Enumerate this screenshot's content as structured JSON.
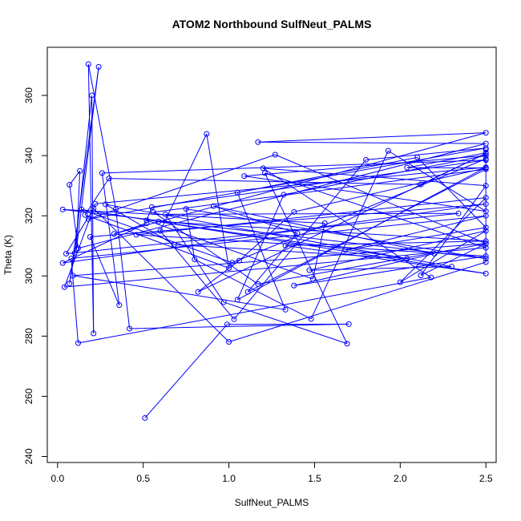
{
  "chart_data": {
    "type": "line",
    "title": "ATOM2 Northbound SulfNeut_PALMS",
    "xlabel": "SulfNeut_PALMS",
    "ylabel": "Theta (K)",
    "xlim": [
      -0.06,
      2.56
    ],
    "ylim": [
      238,
      376
    ],
    "xticks": [
      0.0,
      0.5,
      1.0,
      1.5,
      2.0,
      2.5
    ],
    "xtick_labels": [
      "0.0",
      "0.5",
      "1.0",
      "1.5",
      "2.0",
      "2.5"
    ],
    "yticks": [
      240,
      260,
      280,
      300,
      320,
      340,
      360
    ],
    "ytick_labels": [
      "240",
      "260",
      "280",
      "300",
      "320",
      "340",
      "360"
    ],
    "grid": false,
    "legend": "none",
    "series": [
      {
        "color": "#0000ff",
        "marker": "open-circle",
        "points": [
          [
            0.51,
            252.8
          ],
          [
            0.99,
            283.9
          ],
          [
            1.7,
            284.0
          ],
          [
            0.42,
            282.5
          ],
          [
            0.34,
            322.2
          ],
          [
            0.18,
            370.4
          ],
          [
            0.21,
            280.9
          ],
          [
            0.2,
            360.0
          ],
          [
            0.1,
            307.6
          ],
          [
            0.07,
            297.5
          ],
          [
            0.24,
            369.5
          ],
          [
            0.11,
            308.9
          ],
          [
            0.13,
            334.9
          ],
          [
            0.07,
            330.3
          ],
          [
            0.12,
            309.2
          ],
          [
            2.5,
            344.0
          ],
          [
            1.17,
            344.5
          ],
          [
            2.5,
            347.6
          ],
          [
            0.33,
            314.0
          ],
          [
            0.52,
            317.5
          ],
          [
            0.03,
            304.3
          ],
          [
            2.5,
            323.9
          ],
          [
            0.19,
            313.0
          ],
          [
            0.36,
            290.3
          ],
          [
            0.26,
            334.2
          ],
          [
            2.5,
            338.5
          ],
          [
            0.55,
            322.9
          ],
          [
            0.52,
            318.5
          ],
          [
            1.49,
            299.0
          ],
          [
            1.56,
            317.5
          ],
          [
            0.03,
            322.1
          ],
          [
            2.5,
            305.8
          ],
          [
            0.75,
            322.3
          ],
          [
            0.8,
            305.5
          ],
          [
            1.48,
            285.7
          ],
          [
            1.93,
            341.6
          ],
          [
            2.5,
            321.5
          ],
          [
            1.09,
            333.2
          ],
          [
            2.5,
            340.0
          ],
          [
            1.32,
            327.0
          ],
          [
            1.05,
            292.1
          ],
          [
            2.5,
            336.1
          ],
          [
            0.22,
            324.0
          ],
          [
            0.04,
            296.3
          ],
          [
            2.5,
            309.4
          ],
          [
            1.21,
            334.2
          ],
          [
            1.69,
            277.5
          ],
          [
            0.97,
            291.3
          ],
          [
            0.63,
            320.5
          ],
          [
            2.34,
            320.8
          ],
          [
            0.05,
            307.4
          ],
          [
            0.21,
            322.4
          ],
          [
            1.0,
            278.1
          ],
          [
            2.5,
            304.6
          ],
          [
            2.5,
            340.9
          ],
          [
            2.04,
            336.0
          ],
          [
            2.5,
            335.9
          ],
          [
            1.38,
            321.3
          ],
          [
            1.06,
            305.1
          ],
          [
            0.82,
            294.7
          ],
          [
            2.5,
            340.7
          ],
          [
            2.12,
            330.4
          ],
          [
            0.3,
            332.4
          ],
          [
            0.16,
            320.3
          ],
          [
            1.0,
            302.6
          ],
          [
            0.87,
            347.2
          ],
          [
            0.6,
            315.0
          ],
          [
            1.03,
            285.6
          ],
          [
            1.8,
            338.6
          ],
          [
            2.5,
            342.5
          ],
          [
            0.18,
            318.9
          ],
          [
            1.27,
            340.3
          ],
          [
            2.5,
            310.8
          ],
          [
            0.09,
            300.1
          ],
          [
            1.33,
            288.8
          ],
          [
            1.05,
            327.7
          ],
          [
            2.1,
            339.4
          ],
          [
            2.5,
            316.1
          ],
          [
            1.68,
            308.6
          ],
          [
            2.5,
            320.0
          ],
          [
            0.08,
            305.8
          ],
          [
            0.12,
            277.7
          ],
          [
            2.18,
            299.5
          ],
          [
            1.2,
            335.8
          ],
          [
            2.5,
            330.0
          ],
          [
            2.12,
            300.2
          ],
          [
            2.5,
            310.7
          ],
          [
            1.17,
            297.3
          ],
          [
            0.56,
            321.2
          ],
          [
            2.5,
            335.5
          ],
          [
            1.11,
            294.7
          ],
          [
            1.4,
            314.2
          ],
          [
            0.91,
            323.2
          ],
          [
            2.2,
            307.4
          ],
          [
            1.38,
            296.8
          ],
          [
            2.5,
            306.6
          ],
          [
            0.46,
            313.7
          ],
          [
            2.5,
            326.0
          ],
          [
            2.0,
            297.9
          ],
          [
            2.5,
            315.0
          ],
          [
            1.47,
            301.9
          ],
          [
            2.3,
            303.1
          ],
          [
            0.28,
            323.8
          ],
          [
            0.68,
            310.4
          ],
          [
            2.04,
            305.8
          ],
          [
            0.59,
            318.1
          ],
          [
            2.5,
            311.6
          ],
          [
            1.33,
            310.1
          ],
          [
            2.5,
            300.8
          ],
          [
            0.14,
            322.1
          ],
          [
            1.02,
            304.4
          ],
          [
            2.5,
            338.9
          ],
          [
            2.5,
            342.0
          ]
        ]
      }
    ]
  }
}
